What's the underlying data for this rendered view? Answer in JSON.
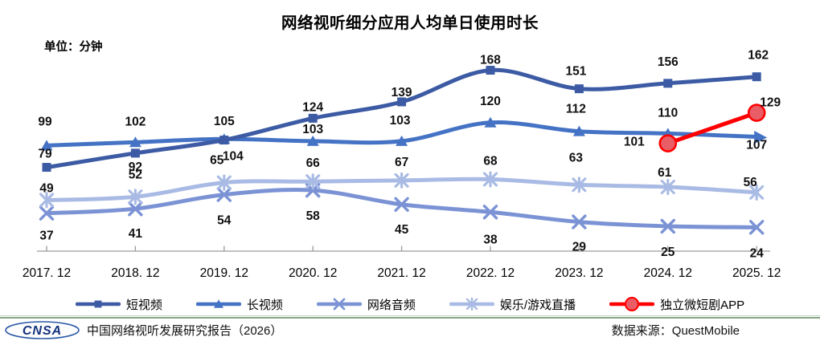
{
  "chart_data": {
    "type": "line",
    "title": "网络视听细分应用人均单日使用时长",
    "unit_label": "单位：分钟",
    "categories": [
      "2017. 12",
      "2018. 12",
      "2019. 12",
      "2020. 12",
      "2021. 12",
      "2022. 12",
      "2023. 12",
      "2024. 12",
      "2025. 12"
    ],
    "ylim": [
      0,
      185
    ],
    "grid": false,
    "legend_position": "bottom",
    "smooth_lines": true,
    "z_order": [
      1,
      0,
      2,
      3,
      4
    ],
    "series": [
      {
        "name": "短视频",
        "marker": "square",
        "color": "#3C5BA4",
        "values": [
          79,
          92,
          104,
          124,
          139,
          168,
          151,
          156,
          162
        ],
        "label_offsets": [
          [
            -2,
            -12
          ],
          [
            0,
            22
          ],
          [
            11,
            25
          ],
          [
            0,
            -9
          ],
          [
            0,
            -7
          ],
          [
            0,
            -8
          ],
          [
            -4,
            -17
          ],
          [
            0,
            -22
          ],
          [
            2,
            -22
          ]
        ]
      },
      {
        "name": "长视频",
        "marker": "triangle",
        "color": "#4472C4",
        "arrow_end": true,
        "values": [
          99,
          102,
          105,
          103,
          103,
          120,
          112,
          110,
          107
        ],
        "label_offsets": [
          [
            -2,
            -25
          ],
          [
            0,
            -21
          ],
          [
            0,
            -17
          ],
          [
            0,
            -10
          ],
          [
            -2,
            -21
          ],
          [
            0,
            -22
          ],
          [
            -4,
            -23
          ],
          [
            0,
            -21
          ],
          [
            0,
            15
          ]
        ]
      },
      {
        "name": "网络音频",
        "marker": "x",
        "color": "#7B93D5",
        "values": [
          37,
          41,
          54,
          58,
          45,
          38,
          29,
          25,
          24
        ],
        "label_offsets": [
          [
            0,
            33
          ],
          [
            0,
            36
          ],
          [
            0,
            37
          ],
          [
            0,
            37
          ],
          [
            0,
            36
          ],
          [
            0,
            39
          ],
          [
            0,
            36
          ],
          [
            0,
            37
          ],
          [
            0,
            37
          ]
        ]
      },
      {
        "name": "娱乐/游戏直播",
        "marker": "star",
        "color": "#A9BBE4",
        "values": [
          49,
          52,
          65,
          66,
          67,
          68,
          63,
          61,
          56
        ],
        "label_offsets": [
          [
            0,
            -10
          ],
          [
            0,
            -23
          ],
          [
            -9,
            -23
          ],
          [
            0,
            -18
          ],
          [
            0,
            -18
          ],
          [
            0,
            -18
          ],
          [
            -4,
            -29
          ],
          [
            -4,
            -13
          ],
          [
            -8,
            -8
          ]
        ]
      },
      {
        "name": "独立微短剧APP",
        "marker": "circle",
        "color": "#FF0000",
        "marker_fill": "#E85D66",
        "values": [
          null,
          null,
          null,
          null,
          null,
          null,
          null,
          101,
          129
        ],
        "label_offsets": [
          [
            0,
            0
          ],
          [
            0,
            0
          ],
          [
            0,
            0
          ],
          [
            0,
            0
          ],
          [
            0,
            0
          ],
          [
            0,
            0
          ],
          [
            0,
            0
          ],
          [
            -42,
            3
          ],
          [
            17,
            -8
          ]
        ]
      }
    ],
    "axis_color": "#9b9b9b",
    "label_color": "#111111"
  },
  "footer": {
    "logo_text": "CNSA",
    "report_label": "中国网络视听发展研究报告（2026）",
    "source_label": "数据来源：QuestMobile"
  }
}
